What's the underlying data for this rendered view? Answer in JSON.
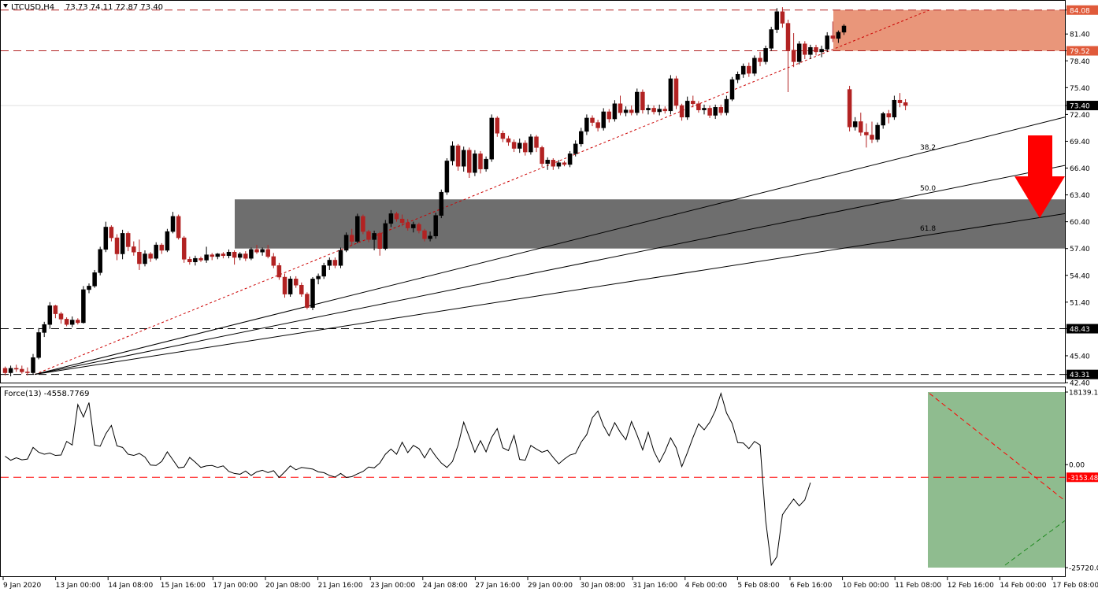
{
  "header": {
    "symbol_label": "LTCUSD,H4",
    "ohlc_label": "73.73 74.11 72.87 73.40"
  },
  "indicator": {
    "label": "Force(13) -4558.7769",
    "axis_ticks": [
      {
        "label": "18139.12",
        "value": 18139.12
      },
      {
        "label": "0.00",
        "value": 0
      },
      {
        "label": "-25720.00",
        "value": -25720
      }
    ],
    "ref_level": {
      "label": "-3153.48",
      "value": -3153.48,
      "color": "#ff0000"
    },
    "series": [
      2100,
      1100,
      1700,
      1200,
      1400,
      4300,
      3100,
      2600,
      2900,
      2300,
      2400,
      5800,
      4900,
      15000,
      11900,
      15500,
      4900,
      4600,
      7700,
      9800,
      4700,
      4300,
      2600,
      2300,
      2800,
      1900,
      -100,
      -200,
      800,
      3200,
      1200,
      -800,
      -600,
      1800,
      600,
      -700,
      -300,
      -200,
      -700,
      -300,
      -1700,
      -2200,
      -2400,
      -1600,
      -2700,
      -1800,
      -1400,
      -2000,
      -1500,
      -3200,
      -1800,
      -300,
      -1300,
      -700,
      -900,
      -1100,
      -1800,
      -2000,
      -2700,
      -3100,
      -2200,
      -3200,
      -3000,
      -2300,
      -1700,
      -600,
      -800,
      400,
      2600,
      3900,
      2600,
      5600,
      3000,
      4800,
      4000,
      1700,
      4100,
      2100,
      400,
      -700,
      800,
      4900,
      10600,
      6900,
      3100,
      6000,
      3200,
      6800,
      9000,
      4200,
      3500,
      7300,
      1300,
      1100,
      4800,
      3900,
      3100,
      3600,
      1800,
      200,
      1400,
      2400,
      2800,
      5600,
      7500,
      11700,
      13400,
      9700,
      7200,
      10500,
      8100,
      6200,
      10800,
      7400,
      3700,
      8100,
      3400,
      600,
      3300,
      6700,
      4200,
      -500,
      3000,
      6800,
      10200,
      8700,
      10600,
      13500,
      17800,
      12900,
      10300,
      5500,
      5400,
      4000,
      5800,
      4900,
      -14000,
      -25100,
      -23000,
      -12500,
      -10500,
      -8600,
      -10300,
      -8800,
      -4500
    ]
  },
  "colors": {
    "bull_candle": "#000000",
    "bear_candle": "#b22222",
    "resistance_zone": "#e9967a",
    "support_zone": "#6e6e6e",
    "force_zone": "#8fbc8f",
    "arrow": "#ff0000",
    "dashed_levels": "#b22222"
  },
  "chart_data": {
    "type": "candlestick",
    "ylim": [
      42.4,
      84.5
    ],
    "price_ticks": [
      {
        "label": "84.08",
        "value": 84.08,
        "highlight": true
      },
      {
        "label": "81.40",
        "value": 81.4
      },
      {
        "label": "79.52",
        "value": 79.52,
        "highlight": true
      },
      {
        "label": "78.40",
        "value": 78.4
      },
      {
        "label": "75.40",
        "value": 75.4
      },
      {
        "label": "73.40",
        "value": 73.4,
        "current": true
      },
      {
        "label": "72.40",
        "value": 72.4
      },
      {
        "label": "69.40",
        "value": 69.4
      },
      {
        "label": "66.40",
        "value": 66.4
      },
      {
        "label": "63.40",
        "value": 63.4
      },
      {
        "label": "60.40",
        "value": 60.4
      },
      {
        "label": "57.40",
        "value": 57.4
      },
      {
        "label": "54.40",
        "value": 54.4
      },
      {
        "label": "51.40",
        "value": 51.4
      },
      {
        "label": "48.43",
        "value": 48.43,
        "highlight": true
      },
      {
        "label": "45.40",
        "value": 45.4
      },
      {
        "label": "43.31",
        "value": 43.31,
        "highlight": true
      },
      {
        "label": "42.40",
        "value": 42.4
      }
    ],
    "dashed_levels": [
      84.08,
      79.52,
      48.43,
      43.31
    ],
    "resistance_zone": [
      79.52,
      84.08
    ],
    "support_zone": [
      57.4,
      62.9
    ],
    "fib_labels": [
      {
        "label": "38.2",
        "value": 38.2
      },
      {
        "label": "50.0",
        "value": 50.0
      },
      {
        "label": "61.8",
        "value": 61.8
      }
    ],
    "x_labels": [
      "9 Jan 2020",
      "13 Jan 00:00",
      "14 Jan 08:00",
      "15 Jan 16:00",
      "17 Jan 00:00",
      "20 Jan 08:00",
      "21 Jan 16:00",
      "23 Jan 00:00",
      "24 Jan 08:00",
      "27 Jan 16:00",
      "29 Jan 00:00",
      "30 Jan 08:00",
      "31 Jan 16:00",
      "4 Feb 00:00",
      "5 Feb 08:00",
      "6 Feb 16:00",
      "10 Feb 00:00",
      "11 Feb 08:00",
      "12 Feb 16:00",
      "14 Feb 00:00",
      "17 Feb 08:00"
    ],
    "candles": [
      [
        44.0,
        44.2,
        43.2,
        43.5
      ],
      [
        43.5,
        44.3,
        43.1,
        44.0
      ],
      [
        44.0,
        44.4,
        43.6,
        43.9
      ],
      [
        43.9,
        44.3,
        43.4,
        43.6
      ],
      [
        43.6,
        44.1,
        43.2,
        43.5
      ],
      [
        43.5,
        45.6,
        43.3,
        45.2
      ],
      [
        45.2,
        48.5,
        45.0,
        48.0
      ],
      [
        48.0,
        49.2,
        47.5,
        48.9
      ],
      [
        48.9,
        51.4,
        48.4,
        51.0
      ],
      [
        51.0,
        51.1,
        49.6,
        50.1
      ],
      [
        50.1,
        50.3,
        49.0,
        49.5
      ],
      [
        49.5,
        49.7,
        48.7,
        48.9
      ],
      [
        48.9,
        49.8,
        48.6,
        49.4
      ],
      [
        49.4,
        49.6,
        48.9,
        49.1
      ],
      [
        49.1,
        53.2,
        49.0,
        52.8
      ],
      [
        52.8,
        53.5,
        52.4,
        53.2
      ],
      [
        53.2,
        55.0,
        53.0,
        54.7
      ],
      [
        54.7,
        57.6,
        54.4,
        57.3
      ],
      [
        57.3,
        60.4,
        57.0,
        59.8
      ],
      [
        59.8,
        60.0,
        58.2,
        58.6
      ],
      [
        58.6,
        59.0,
        56.1,
        56.8
      ],
      [
        56.8,
        59.5,
        56.2,
        59.1
      ],
      [
        59.1,
        59.3,
        57.1,
        57.6
      ],
      [
        57.6,
        58.2,
        56.6,
        57.0
      ],
      [
        57.0,
        58.4,
        55.0,
        55.7
      ],
      [
        55.7,
        57.2,
        55.4,
        56.8
      ],
      [
        56.8,
        57.0,
        55.9,
        56.3
      ],
      [
        56.3,
        58.1,
        56.1,
        57.8
      ],
      [
        57.8,
        58.0,
        56.8,
        57.2
      ],
      [
        57.2,
        59.6,
        57.0,
        59.3
      ],
      [
        59.3,
        61.5,
        59.1,
        61.0
      ],
      [
        61.0,
        61.2,
        58.4,
        58.6
      ],
      [
        58.6,
        58.8,
        55.8,
        56.2
      ],
      [
        56.2,
        56.5,
        55.6,
        55.9
      ],
      [
        55.9,
        56.6,
        55.5,
        56.3
      ],
      [
        56.3,
        56.5,
        55.9,
        56.1
      ],
      [
        56.1,
        57.6,
        55.8,
        56.7
      ],
      [
        56.7,
        56.9,
        56.1,
        56.5
      ],
      [
        56.5,
        56.9,
        56.2,
        56.8
      ],
      [
        56.8,
        57.0,
        56.3,
        56.6
      ],
      [
        56.6,
        57.3,
        56.3,
        57.0
      ],
      [
        57.0,
        57.2,
        55.6,
        56.4
      ],
      [
        56.4,
        57.0,
        56.1,
        56.8
      ],
      [
        56.8,
        57.1,
        56.0,
        56.3
      ],
      [
        56.3,
        57.5,
        56.1,
        57.3
      ],
      [
        57.3,
        57.8,
        56.8,
        57.0
      ],
      [
        57.0,
        57.5,
        56.6,
        57.3
      ],
      [
        57.3,
        57.8,
        56.3,
        56.5
      ],
      [
        56.5,
        56.9,
        55.2,
        55.5
      ],
      [
        55.5,
        55.8,
        53.9,
        54.2
      ],
      [
        54.2,
        54.6,
        51.9,
        52.3
      ],
      [
        52.3,
        54.3,
        52.0,
        54.0
      ],
      [
        54.0,
        54.3,
        53.0,
        53.3
      ],
      [
        53.3,
        53.6,
        52.0,
        52.3
      ],
      [
        52.3,
        52.5,
        50.6,
        50.8
      ],
      [
        50.8,
        54.2,
        50.5,
        54.0
      ],
      [
        54.0,
        54.6,
        53.4,
        54.3
      ],
      [
        54.3,
        55.8,
        54.0,
        55.5
      ],
      [
        55.5,
        56.4,
        55.0,
        56.1
      ],
      [
        56.1,
        56.4,
        55.2,
        55.5
      ],
      [
        55.5,
        57.5,
        55.2,
        57.2
      ],
      [
        57.2,
        59.2,
        57.0,
        58.9
      ],
      [
        58.9,
        59.6,
        57.7,
        58.2
      ],
      [
        58.2,
        61.3,
        58.0,
        61.0
      ],
      [
        61.0,
        61.2,
        59.0,
        59.3
      ],
      [
        59.3,
        59.5,
        58.1,
        58.4
      ],
      [
        58.4,
        59.4,
        57.2,
        59.1
      ],
      [
        59.1,
        59.3,
        56.6,
        57.4
      ],
      [
        57.4,
        60.6,
        57.2,
        60.2
      ],
      [
        60.2,
        61.7,
        59.8,
        61.3
      ],
      [
        61.3,
        61.5,
        60.4,
        60.7
      ],
      [
        60.7,
        61.2,
        59.9,
        60.3
      ],
      [
        60.3,
        60.7,
        59.4,
        59.7
      ],
      [
        59.7,
        60.4,
        59.2,
        60.1
      ],
      [
        60.1,
        60.3,
        59.1,
        59.4
      ],
      [
        59.4,
        59.6,
        58.2,
        58.5
      ],
      [
        58.5,
        59.3,
        58.2,
        58.8
      ],
      [
        58.8,
        61.4,
        58.5,
        61.1
      ],
      [
        61.1,
        64.0,
        60.8,
        63.7
      ],
      [
        63.7,
        67.5,
        63.4,
        67.2
      ],
      [
        67.2,
        69.4,
        66.7,
        68.9
      ],
      [
        68.9,
        69.1,
        66.1,
        66.6
      ],
      [
        66.6,
        68.8,
        66.0,
        68.4
      ],
      [
        68.4,
        68.7,
        65.3,
        65.9
      ],
      [
        65.9,
        68.4,
        65.5,
        68.0
      ],
      [
        68.0,
        68.3,
        65.8,
        66.3
      ],
      [
        66.3,
        67.7,
        66.0,
        67.4
      ],
      [
        67.4,
        72.4,
        67.1,
        72.0
      ],
      [
        72.0,
        72.2,
        69.9,
        70.3
      ],
      [
        70.3,
        70.6,
        69.3,
        69.7
      ],
      [
        69.7,
        70.0,
        68.9,
        69.3
      ],
      [
        69.3,
        69.6,
        68.2,
        68.6
      ],
      [
        68.6,
        69.7,
        68.1,
        69.2
      ],
      [
        69.2,
        69.5,
        67.8,
        68.2
      ],
      [
        68.2,
        70.2,
        67.9,
        69.9
      ],
      [
        69.9,
        70.1,
        68.2,
        68.7
      ],
      [
        68.7,
        68.9,
        66.5,
        66.9
      ],
      [
        66.9,
        67.6,
        66.2,
        67.3
      ],
      [
        67.3,
        67.5,
        66.2,
        66.6
      ],
      [
        66.6,
        67.3,
        66.3,
        67.0
      ],
      [
        67.0,
        67.2,
        66.6,
        66.8
      ],
      [
        66.8,
        68.3,
        66.5,
        68.0
      ],
      [
        68.0,
        69.5,
        67.7,
        69.1
      ],
      [
        69.1,
        70.9,
        68.8,
        70.5
      ],
      [
        70.5,
        72.4,
        70.1,
        72.0
      ],
      [
        72.0,
        72.3,
        71.1,
        71.5
      ],
      [
        71.5,
        71.8,
        70.5,
        70.9
      ],
      [
        70.9,
        73.1,
        70.6,
        72.7
      ],
      [
        72.7,
        73.0,
        71.5,
        71.9
      ],
      [
        71.9,
        74.0,
        71.6,
        73.6
      ],
      [
        73.6,
        74.5,
        72.3,
        72.6
      ],
      [
        72.6,
        73.3,
        72.2,
        72.9
      ],
      [
        72.9,
        73.4,
        72.3,
        72.6
      ],
      [
        72.6,
        75.3,
        72.3,
        74.9
      ],
      [
        74.9,
        75.2,
        72.5,
        72.9
      ],
      [
        72.9,
        73.5,
        72.4,
        73.1
      ],
      [
        73.1,
        73.4,
        72.4,
        72.7
      ],
      [
        72.7,
        73.5,
        72.3,
        73.0
      ],
      [
        73.0,
        73.3,
        72.5,
        72.8
      ],
      [
        72.8,
        76.8,
        72.4,
        76.4
      ],
      [
        76.4,
        76.7,
        73.0,
        73.4
      ],
      [
        73.4,
        73.6,
        71.7,
        72.1
      ],
      [
        72.1,
        74.4,
        71.8,
        73.9
      ],
      [
        73.9,
        74.5,
        73.2,
        73.6
      ],
      [
        73.6,
        73.9,
        72.6,
        72.9
      ],
      [
        72.9,
        73.5,
        72.4,
        73.1
      ],
      [
        73.1,
        73.4,
        72.0,
        72.3
      ],
      [
        72.3,
        73.5,
        71.9,
        73.2
      ],
      [
        73.2,
        73.5,
        72.3,
        72.6
      ],
      [
        72.6,
        74.5,
        72.3,
        74.1
      ],
      [
        74.1,
        76.6,
        73.9,
        76.3
      ],
      [
        76.3,
        77.2,
        75.9,
        76.9
      ],
      [
        76.9,
        78.1,
        76.5,
        77.8
      ],
      [
        77.8,
        78.2,
        76.6,
        77.0
      ],
      [
        77.0,
        79.0,
        76.7,
        78.7
      ],
      [
        78.7,
        79.4,
        77.8,
        78.3
      ],
      [
        78.3,
        80.1,
        78.0,
        79.8
      ],
      [
        79.8,
        82.2,
        79.5,
        81.9
      ],
      [
        81.9,
        84.3,
        81.5,
        83.9
      ],
      [
        83.9,
        84.4,
        82.1,
        82.6
      ],
      [
        82.6,
        83.0,
        74.9,
        79.6
      ],
      [
        79.6,
        81.5,
        77.7,
        78.3
      ],
      [
        78.3,
        80.6,
        78.0,
        80.3
      ],
      [
        80.3,
        80.6,
        78.6,
        79.1
      ],
      [
        79.1,
        80.2,
        78.6,
        79.9
      ],
      [
        79.9,
        80.2,
        79.0,
        79.4
      ],
      [
        79.4,
        80.1,
        78.8,
        79.7
      ],
      [
        79.7,
        81.6,
        79.4,
        81.2
      ],
      [
        81.2,
        82.8,
        80.5,
        80.9
      ],
      [
        80.9,
        81.8,
        80.4,
        81.6
      ],
      [
        81.6,
        82.5,
        81.3,
        82.3
      ],
      [
        75.2,
        75.6,
        70.5,
        71.0
      ],
      [
        71.0,
        72.1,
        70.6,
        71.6
      ],
      [
        71.6,
        72.6,
        70.0,
        70.4
      ],
      [
        70.4,
        71.4,
        68.7,
        70.1
      ],
      [
        70.1,
        71.6,
        69.2,
        69.6
      ],
      [
        69.6,
        71.5,
        69.3,
        71.2
      ],
      [
        71.2,
        72.7,
        70.8,
        72.5
      ],
      [
        72.5,
        72.9,
        71.4,
        72.1
      ],
      [
        72.1,
        74.5,
        71.8,
        74.0
      ],
      [
        74.0,
        74.8,
        73.2,
        73.7
      ],
      [
        73.73,
        74.11,
        72.87,
        73.4
      ]
    ]
  }
}
